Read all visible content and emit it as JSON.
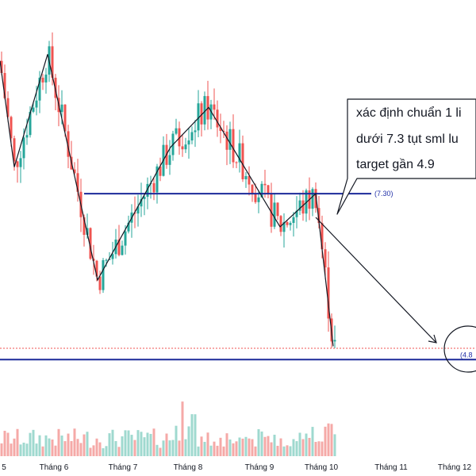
{
  "chart_data": {
    "type": "candlestick",
    "colors": {
      "up": "#26a69a",
      "down": "#ef5350",
      "level": "#1c2a9a",
      "pattern": "#131722",
      "price_line": "#ef5350"
    },
    "x_ticks": [
      "5",
      "Tháng 6",
      "Tháng 7",
      "Tháng 8",
      "Tháng 9",
      "Tháng 10",
      "Tháng 11",
      "Tháng 12"
    ],
    "price_range": [
      4.6,
      9.5
    ],
    "levels": [
      {
        "value": 7.3,
        "label": "(7.30)"
      },
      {
        "value": 4.8,
        "label": "(4.8"
      }
    ],
    "last_close": 4.97,
    "pattern_points": [
      {
        "date": "Tháng 5",
        "price": 9.3
      },
      {
        "date": "Tháng 5",
        "price": 7.7
      },
      {
        "date": "Tháng 5",
        "price": 9.4
      },
      {
        "date": "Tháng 6",
        "price": 6.0
      },
      {
        "date": "Tháng 7",
        "price": 8.0
      },
      {
        "date": "Tháng 8",
        "price": 8.6
      },
      {
        "date": "Tháng 9",
        "price": 6.8
      },
      {
        "date": "Tháng 9",
        "price": 7.3
      },
      {
        "date": "Tháng 10",
        "price": 5.0
      }
    ],
    "annotation": {
      "lines": [
        "xác định chuẩn 1 li",
        "dưới 7.3 tụt sml lu",
        "target gần 4.9"
      ]
    },
    "volume_note": "volume bars at bottom, larger spikes in Tháng 8"
  }
}
